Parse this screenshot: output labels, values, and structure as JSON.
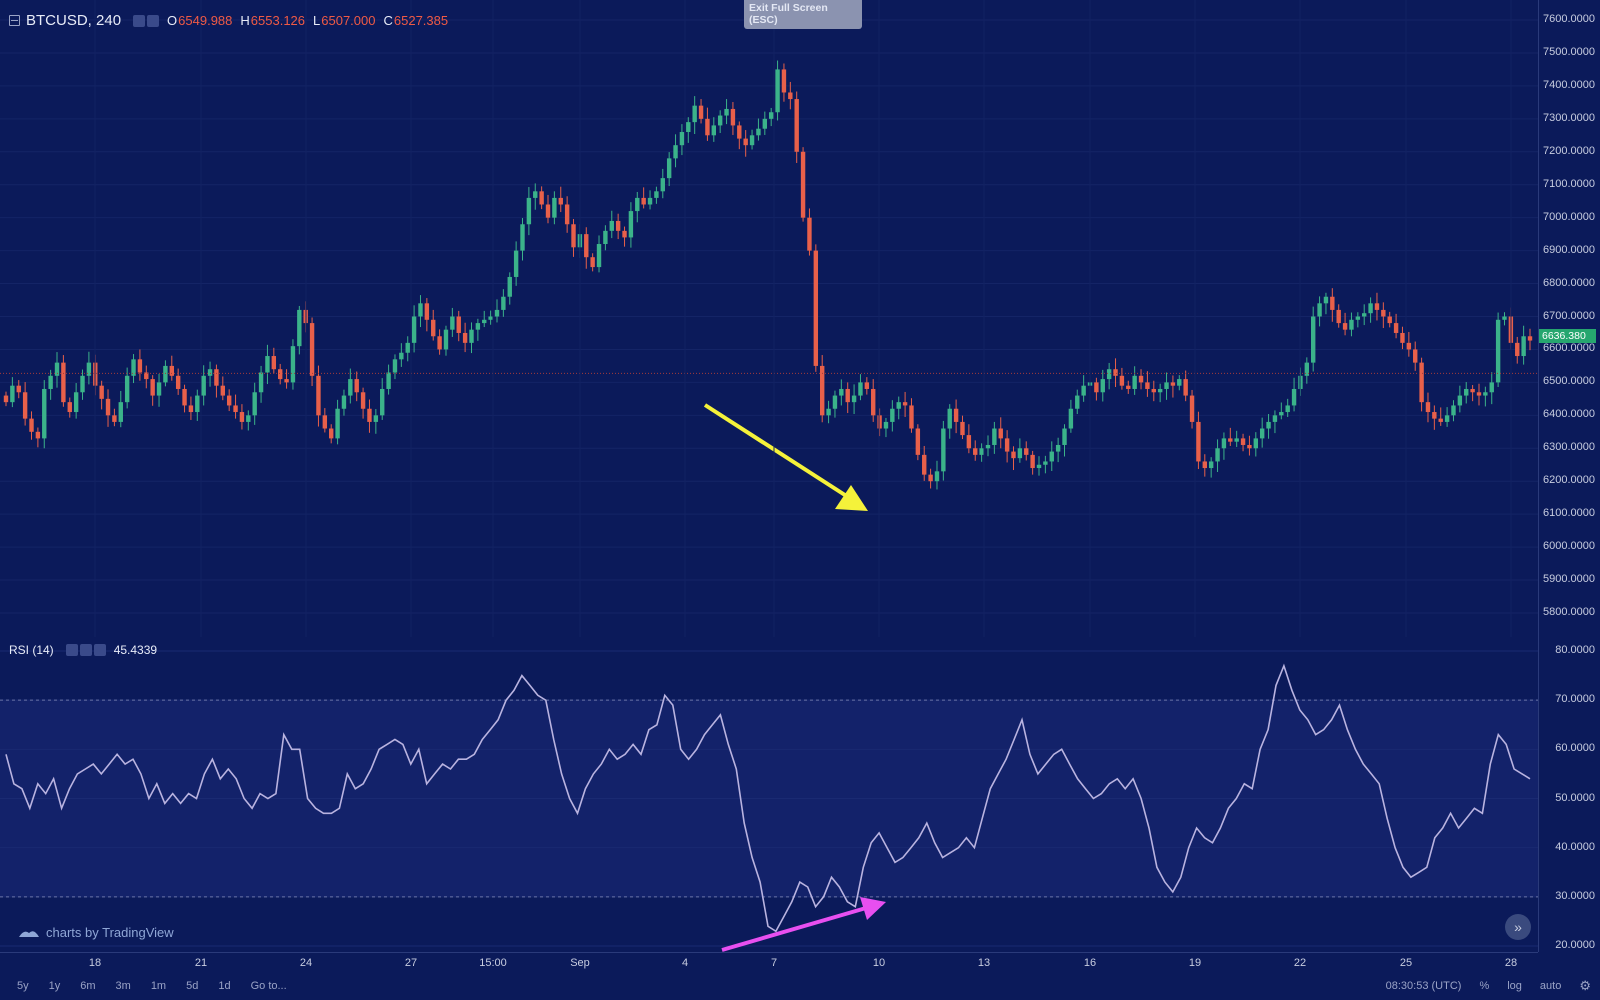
{
  "symbol": "BTCUSD, 240",
  "ohlc": {
    "o_label": "O",
    "o": "6549.988",
    "h_label": "H",
    "h": "6553.126",
    "l_label": "L",
    "l": "6507.000",
    "c_label": "C",
    "c": "6527.385"
  },
  "exit_fullscreen": "Exit Full Screen (ESC)",
  "last_price": "6636.380",
  "rsi": {
    "label": "RSI (14)",
    "value": "45.4339"
  },
  "watermark": "charts by TradingView",
  "price_axis": [
    "7600.0000",
    "7500.0000",
    "7400.0000",
    "7300.0000",
    "7200.0000",
    "7100.0000",
    "7000.0000",
    "6900.0000",
    "6800.0000",
    "6700.0000",
    "6600.0000",
    "6500.0000",
    "6400.0000",
    "6300.0000",
    "6200.0000",
    "6100.0000",
    "6000.0000",
    "5900.0000",
    "5800.0000"
  ],
  "rsi_axis": [
    "80.0000",
    "70.0000",
    "60.0000",
    "50.0000",
    "40.0000",
    "30.0000",
    "20.0000"
  ],
  "time_axis": [
    "18",
    "21",
    "24",
    "27",
    "15:00",
    "Sep",
    "4",
    "7",
    "10",
    "13",
    "16",
    "19",
    "22",
    "25",
    "28"
  ],
  "ranges": [
    "5y",
    "1y",
    "6m",
    "3m",
    "1m",
    "5d",
    "1d",
    "Go to..."
  ],
  "status": {
    "time": "08:30:53 (UTC)",
    "percent": "%",
    "log": "log",
    "auto": "auto"
  },
  "colors": {
    "background": "#0b1a5a",
    "up": "#3bb38a",
    "down": "#e8604a",
    "rsi_line": "#b9b3e0",
    "yellow_arrow": "#f5f23a",
    "magenta_arrow": "#e84ff0"
  },
  "chart_data": [
    {
      "type": "candlestick",
      "series": "BTCUSD 240",
      "ylim": [
        5750,
        7650
      ],
      "close": [
        6440,
        6490,
        6470,
        6390,
        6350,
        6330,
        6480,
        6520,
        6560,
        6440,
        6410,
        6470,
        6520,
        6560,
        6490,
        6450,
        6400,
        6380,
        6440,
        6520,
        6570,
        6530,
        6510,
        6460,
        6500,
        6550,
        6520,
        6480,
        6430,
        6410,
        6460,
        6520,
        6540,
        6490,
        6460,
        6430,
        6410,
        6380,
        6400,
        6470,
        6530,
        6580,
        6540,
        6510,
        6500,
        6610,
        6720,
        6680,
        6520,
        6400,
        6360,
        6330,
        6420,
        6460,
        6510,
        6470,
        6420,
        6380,
        6400,
        6480,
        6530,
        6570,
        6590,
        6620,
        6700,
        6740,
        6690,
        6640,
        6600,
        6660,
        6700,
        6650,
        6620,
        6660,
        6680,
        6690,
        6700,
        6720,
        6760,
        6820,
        6900,
        6980,
        7060,
        7080,
        7040,
        7000,
        7060,
        7040,
        6980,
        6910,
        6950,
        6880,
        6850,
        6920,
        6960,
        6990,
        6960,
        6940,
        7020,
        7060,
        7040,
        7060,
        7080,
        7120,
        7180,
        7220,
        7260,
        7290,
        7340,
        7300,
        7250,
        7280,
        7310,
        7330,
        7280,
        7240,
        7220,
        7250,
        7270,
        7300,
        7320,
        7450,
        7380,
        7360,
        7200,
        7000,
        6900,
        6550,
        6400,
        6420,
        6460,
        6480,
        6440,
        6460,
        6500,
        6480,
        6400,
        6360,
        6380,
        6420,
        6440,
        6430,
        6360,
        6280,
        6220,
        6200,
        6230,
        6360,
        6420,
        6380,
        6340,
        6300,
        6280,
        6300,
        6310,
        6360,
        6330,
        6290,
        6270,
        6300,
        6280,
        6240,
        6250,
        6260,
        6290,
        6310,
        6360,
        6420,
        6460,
        6490,
        6500,
        6470,
        6510,
        6540,
        6520,
        6490,
        6480,
        6520,
        6500,
        6480,
        6470,
        6480,
        6500,
        6490,
        6510,
        6460,
        6380,
        6260,
        6240,
        6260,
        6300,
        6330,
        6320,
        6330,
        6310,
        6300,
        6330,
        6360,
        6380,
        6400,
        6410,
        6430,
        6480,
        6520,
        6560,
        6700,
        6740,
        6760,
        6720,
        6680,
        6660,
        6690,
        6700,
        6710,
        6740,
        6720,
        6700,
        6680,
        6650,
        6620,
        6600,
        6560,
        6440,
        6410,
        6390,
        6380,
        6400,
        6430,
        6460,
        6480,
        6470,
        6460,
        6470,
        6500,
        6690,
        6700,
        6620,
        6580,
        6640,
        6627
      ]
    },
    {
      "type": "line",
      "series": "RSI (14)",
      "ylim": [
        18,
        82
      ],
      "reference_lines": [
        70,
        30
      ],
      "values": [
        59,
        53,
        52,
        48,
        53,
        51,
        54,
        48,
        52,
        55,
        56,
        57,
        55,
        57,
        59,
        57,
        58,
        55,
        50,
        53,
        49,
        51,
        49,
        51,
        50,
        55,
        58,
        54,
        56,
        54,
        50,
        48,
        51,
        50,
        51,
        63,
        60,
        60,
        50,
        48,
        47,
        47,
        48,
        55,
        52,
        53,
        56,
        60,
        61,
        62,
        61,
        57,
        60,
        53,
        55,
        57,
        56,
        58,
        58,
        59,
        62,
        64,
        66,
        70,
        72,
        75,
        73,
        71,
        70,
        62,
        55,
        50,
        47,
        52,
        55,
        57,
        60,
        58,
        59,
        61,
        59,
        64,
        65,
        71,
        69,
        60,
        58,
        60,
        63,
        65,
        67,
        61,
        56,
        45,
        38,
        33,
        24,
        23,
        26,
        29,
        33,
        32,
        28,
        30,
        34,
        32,
        29,
        28,
        36,
        41,
        43,
        40,
        37,
        38,
        40,
        42,
        45,
        41,
        38,
        39,
        40,
        42,
        40,
        46,
        52,
        55,
        58,
        62,
        66,
        59,
        55,
        57,
        59,
        60,
        57,
        54,
        52,
        50,
        51,
        53,
        54,
        52,
        54,
        50,
        44,
        36,
        33,
        31,
        34,
        40,
        44,
        42,
        41,
        44,
        48,
        50,
        53,
        52,
        60,
        64,
        73,
        77,
        72,
        68,
        66,
        63,
        64,
        66,
        69,
        64,
        60,
        57,
        55,
        53,
        46,
        40,
        36,
        34,
        35,
        36,
        42,
        44,
        47,
        44,
        46,
        48,
        47,
        57,
        63,
        61,
        56,
        55,
        54
      ]
    }
  ]
}
